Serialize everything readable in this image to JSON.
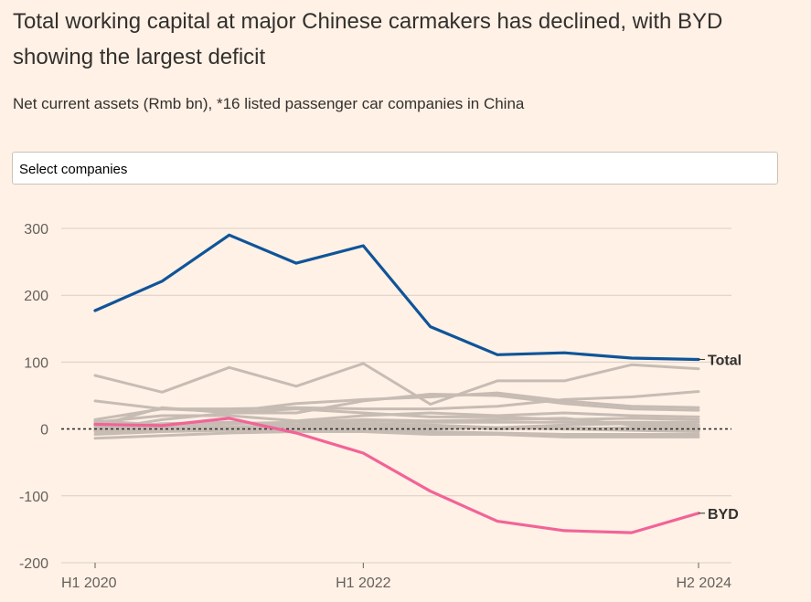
{
  "header": {
    "title": "Total working capital at major Chinese carmakers has declined, with BYD showing the largest deficit",
    "subtitle": "Net current assets (Rmb bn), *16 listed passenger car companies in China"
  },
  "filter": {
    "select_label": "Select companies"
  },
  "colors": {
    "background": "#fff1e5",
    "total": "#0f5499",
    "byd": "#f26398",
    "others": "#c7bcb4",
    "grid": "#d9cec6",
    "axis_text": "#66605c"
  },
  "chart_data": {
    "type": "line",
    "x": [
      "H1 2020",
      "H2 2020",
      "H1 2021",
      "H2 2021",
      "H1 2022",
      "H2 2022",
      "H1 2023",
      "H2 2023",
      "H1 2024",
      "H2 2024"
    ],
    "x_tick_labels": [
      "H1 2020",
      "H1 2022",
      "H2 2024"
    ],
    "x_tick_indices": [
      0,
      4,
      9
    ],
    "ylim": [
      -200,
      300
    ],
    "y_ticks": [
      300,
      200,
      100,
      0,
      -100,
      -200
    ],
    "grid": true,
    "zero_line": "dotted",
    "highlighted": [
      {
        "name": "Total",
        "values": [
          177,
          221,
          290,
          248,
          274,
          153,
          111,
          114,
          106,
          104
        ]
      },
      {
        "name": "BYD",
        "values": [
          7,
          5,
          16,
          -6,
          -36,
          -93,
          -138,
          -152,
          -155,
          -126
        ]
      }
    ],
    "others": [
      [
        80,
        55,
        92,
        64,
        98,
        37,
        72,
        72,
        96,
        90
      ],
      [
        42,
        30,
        30,
        32,
        30,
        30,
        34,
        44,
        48,
        56
      ],
      [
        14,
        30,
        26,
        38,
        44,
        48,
        54,
        42,
        34,
        32
      ],
      [
        4,
        32,
        24,
        24,
        42,
        52,
        50,
        38,
        30,
        28
      ],
      [
        10,
        20,
        20,
        12,
        20,
        24,
        20,
        24,
        20,
        18
      ],
      [
        -2,
        14,
        24,
        30,
        24,
        18,
        18,
        14,
        16,
        14
      ],
      [
        0,
        8,
        10,
        6,
        12,
        10,
        10,
        10,
        10,
        10
      ],
      [
        6,
        2,
        4,
        4,
        4,
        4,
        2,
        6,
        8,
        6
      ],
      [
        -4,
        -2,
        2,
        -2,
        0,
        0,
        2,
        0,
        2,
        2
      ],
      [
        2,
        -2,
        0,
        -2,
        -4,
        -4,
        -6,
        -8,
        -8,
        -8
      ],
      [
        -14,
        -10,
        -6,
        -4,
        -4,
        -8,
        -8,
        -12,
        -12,
        -12
      ],
      [
        -8,
        -4,
        -2,
        0,
        2,
        4,
        0,
        2,
        0,
        -2
      ],
      [
        12,
        6,
        8,
        10,
        14,
        12,
        14,
        16,
        6,
        4
      ],
      [
        0,
        0,
        2,
        4,
        8,
        6,
        2,
        0,
        -2,
        -4
      ]
    ]
  }
}
